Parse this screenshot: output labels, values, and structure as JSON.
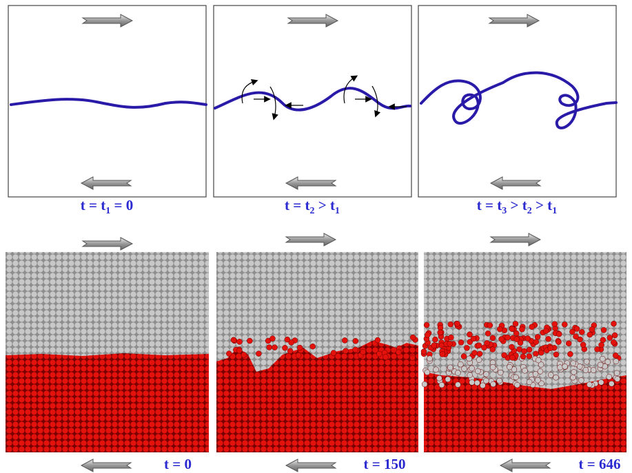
{
  "top_panels": [
    {
      "label": [
        "t = t",
        "1",
        " = 0"
      ]
    },
    {
      "label": [
        "t = t",
        "2",
        " > t",
        "1"
      ]
    },
    {
      "label": [
        "t = t",
        "3",
        " > t",
        "2",
        " > t",
        "1"
      ]
    }
  ],
  "bottom_panels": [
    {
      "label": "t = 0"
    },
    {
      "label": "t = 150"
    },
    {
      "label": "t = 646"
    }
  ]
}
